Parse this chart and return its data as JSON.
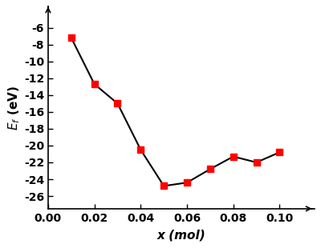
{
  "x": [
    0.01,
    0.02,
    0.03,
    0.04,
    0.05,
    0.06,
    0.07,
    0.08,
    0.09,
    0.1
  ],
  "y": [
    -7.2,
    -12.7,
    -15.0,
    -20.5,
    -24.8,
    -24.4,
    -22.8,
    -21.3,
    -22.0,
    -20.8
  ],
  "xlabel": "x (mol)",
  "ylabel": "$\\mathit{E}_{f}$ (eV)",
  "xlim": [
    0.0,
    0.115
  ],
  "ylim": [
    -27.5,
    -3.5
  ],
  "xticks": [
    0.0,
    0.02,
    0.04,
    0.06,
    0.08,
    0.1
  ],
  "yticks": [
    -26,
    -24,
    -22,
    -20,
    -18,
    -16,
    -14,
    -12,
    -10,
    -8,
    -6
  ],
  "line_color": "#000000",
  "marker_color": "#ff0000",
  "marker": "s",
  "marker_size": 6,
  "line_width": 1.5,
  "background_color": "#ffffff",
  "tick_fontsize": 10,
  "tick_fontweight": "bold",
  "label_fontsize": 11
}
